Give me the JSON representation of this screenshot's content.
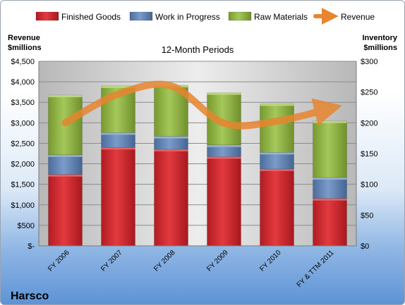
{
  "chart_data": {
    "type": "bar",
    "title": "12-Month Periods",
    "company": "Harsco",
    "left_axis_label": [
      "Revenue",
      "$millions"
    ],
    "right_axis_label": [
      "Inventory",
      "$millions"
    ],
    "categories": [
      "FY 2006",
      "FY 2007",
      "FY 2008",
      "FY 2009",
      "FY 2010",
      "FY & TTM 2011"
    ],
    "left_ylim": [
      0,
      4500
    ],
    "left_ticks": [
      "$-",
      "$500",
      "$1,000",
      "$1,500",
      "$2,000",
      "$2,500",
      "$3,000",
      "$3,500",
      "$4,000",
      "$4,500"
    ],
    "right_ylim": [
      0,
      300
    ],
    "right_ticks": [
      "$0",
      "$50",
      "$100",
      "$150",
      "$200",
      "$250",
      "$300"
    ],
    "stacked": true,
    "series": [
      {
        "name": "Finished Goods",
        "axis": "right",
        "color": "#c0262c",
        "values": [
          116,
          160,
          157,
          145,
          125,
          77
        ]
      },
      {
        "name": "Work in Progress",
        "axis": "right",
        "color": "#5a7fb0",
        "values": [
          32,
          24,
          21,
          19,
          27,
          34
        ]
      },
      {
        "name": "Raw Materials",
        "axis": "right",
        "color": "#8aaf3e",
        "values": [
          97,
          76,
          83,
          85,
          79,
          92
        ]
      }
    ],
    "line_series": {
      "name": "Revenue",
      "axis": "left",
      "color": "#e8852f",
      "values": [
        3000,
        3700,
        3900,
        2990,
        3040,
        3350
      ]
    },
    "legend_position": "top",
    "grid": true
  }
}
